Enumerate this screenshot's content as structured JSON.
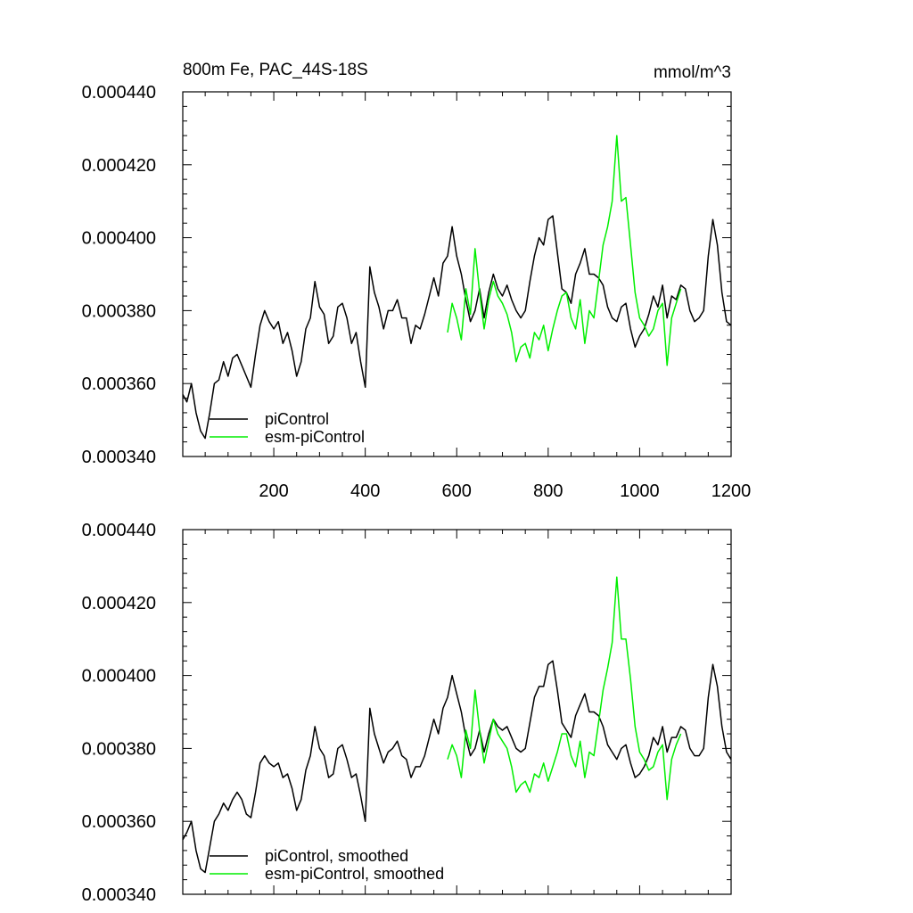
{
  "colors": {
    "piControl": "#000000",
    "esm": "#00ee00"
  },
  "chart_data": [
    {
      "type": "line",
      "title": "800m Fe, PAC_44S-18S",
      "units": "mmol/m^3",
      "xlim": [
        1,
        1200
      ],
      "ylim": [
        0.00034,
        0.00044
      ],
      "x_tick_values": [
        200,
        400,
        600,
        800,
        1000,
        1200
      ],
      "x_tick_labels": [
        "200",
        "400",
        "600",
        "800",
        "1000",
        "1200"
      ],
      "y_tick_values": [
        0.00034,
        0.00036,
        0.00038,
        0.0004,
        0.00042,
        0.00044
      ],
      "y_tick_labels": [
        "0.000340",
        "0.000360",
        "0.000380",
        "0.000400",
        "0.000420",
        "0.000440"
      ],
      "legend_position": "bottom-left",
      "series": [
        {
          "name": "piControl",
          "color": "#000000",
          "x": [
            1,
            10,
            20,
            30,
            40,
            50,
            60,
            70,
            80,
            90,
            100,
            110,
            120,
            130,
            140,
            150,
            160,
            170,
            180,
            190,
            200,
            210,
            220,
            230,
            240,
            250,
            260,
            270,
            280,
            290,
            300,
            310,
            320,
            330,
            340,
            350,
            360,
            370,
            380,
            390,
            400,
            410,
            420,
            430,
            440,
            450,
            460,
            470,
            480,
            490,
            500,
            510,
            520,
            530,
            540,
            550,
            560,
            570,
            580,
            590,
            600,
            610,
            620,
            630,
            640,
            650,
            660,
            670,
            680,
            690,
            700,
            710,
            720,
            730,
            740,
            750,
            760,
            770,
            780,
            790,
            800,
            810,
            820,
            830,
            840,
            850,
            860,
            870,
            880,
            890,
            900,
            910,
            920,
            930,
            940,
            950,
            960,
            970,
            980,
            990,
            1000,
            1010,
            1020,
            1030,
            1040,
            1050,
            1060,
            1070,
            1080,
            1090,
            1100,
            1110,
            1120,
            1130,
            1140,
            1150,
            1160,
            1170,
            1180,
            1190,
            1200
          ],
          "y": [
            0.000357,
            0.000355,
            0.00036,
            0.000352,
            0.000347,
            0.000345,
            0.000352,
            0.00036,
            0.000361,
            0.000366,
            0.000362,
            0.000367,
            0.000368,
            0.000365,
            0.000362,
            0.000359,
            0.000368,
            0.000376,
            0.00038,
            0.000377,
            0.000375,
            0.000377,
            0.000371,
            0.000374,
            0.000369,
            0.000362,
            0.000366,
            0.000375,
            0.000378,
            0.000388,
            0.000381,
            0.000379,
            0.000371,
            0.000373,
            0.000381,
            0.000382,
            0.000378,
            0.000371,
            0.000374,
            0.000366,
            0.000359,
            0.000392,
            0.000385,
            0.000381,
            0.000375,
            0.00038,
            0.00038,
            0.000383,
            0.000378,
            0.000378,
            0.000371,
            0.000376,
            0.000375,
            0.000379,
            0.000384,
            0.000389,
            0.000384,
            0.000393,
            0.000395,
            0.000403,
            0.000395,
            0.00039,
            0.000383,
            0.000377,
            0.00038,
            0.000386,
            0.000378,
            0.000385,
            0.00039,
            0.000386,
            0.000384,
            0.000387,
            0.000383,
            0.00038,
            0.000378,
            0.00038,
            0.000388,
            0.000395,
            0.0004,
            0.000398,
            0.000405,
            0.000406,
            0.000396,
            0.000386,
            0.000385,
            0.000382,
            0.00039,
            0.000393,
            0.000397,
            0.00039,
            0.00039,
            0.000389,
            0.000387,
            0.000381,
            0.000378,
            0.000377,
            0.000381,
            0.000382,
            0.000375,
            0.00037,
            0.000373,
            0.000375,
            0.000379,
            0.000384,
            0.000381,
            0.000387,
            0.000378,
            0.000384,
            0.000383,
            0.000387,
            0.000386,
            0.00038,
            0.000377,
            0.000378,
            0.00038,
            0.000395,
            0.000405,
            0.000398,
            0.000385,
            0.000377,
            0.000376
          ]
        },
        {
          "name": "esm-piControl",
          "color": "#00ee00",
          "x": [
            580,
            590,
            600,
            610,
            620,
            630,
            640,
            650,
            660,
            670,
            680,
            690,
            700,
            710,
            720,
            730,
            740,
            750,
            760,
            770,
            780,
            790,
            800,
            810,
            820,
            830,
            840,
            850,
            860,
            870,
            880,
            890,
            900,
            910,
            920,
            930,
            940,
            950,
            960,
            970,
            980,
            990,
            1000,
            1010,
            1020,
            1030,
            1040,
            1050,
            1060,
            1070,
            1080,
            1090
          ],
          "y": [
            0.000374,
            0.000382,
            0.000378,
            0.000372,
            0.000386,
            0.000379,
            0.000397,
            0.000385,
            0.000375,
            0.000383,
            0.000388,
            0.000384,
            0.000382,
            0.000379,
            0.000374,
            0.000366,
            0.00037,
            0.000371,
            0.000367,
            0.000374,
            0.000372,
            0.000376,
            0.000369,
            0.000375,
            0.00038,
            0.000384,
            0.000385,
            0.000378,
            0.000375,
            0.000383,
            0.000371,
            0.00038,
            0.000378,
            0.000388,
            0.000398,
            0.000403,
            0.00041,
            0.000428,
            0.00041,
            0.000411,
            0.000398,
            0.000385,
            0.000378,
            0.000376,
            0.000373,
            0.000375,
            0.00038,
            0.000382,
            0.000365,
            0.000378,
            0.000382,
            0.000386
          ]
        }
      ]
    },
    {
      "type": "line",
      "xlim": [
        1,
        1200
      ],
      "ylim": [
        0.00034,
        0.00044
      ],
      "x_tick_values": [
        200,
        400,
        600,
        800,
        1000,
        1200
      ],
      "x_tick_labels": [],
      "y_tick_values": [
        0.00034,
        0.00036,
        0.00038,
        0.0004,
        0.00042,
        0.00044
      ],
      "y_tick_labels": [
        "0.000340",
        "0.000360",
        "0.000380",
        "0.000400",
        "0.000420",
        "0.000440"
      ],
      "legend_position": "bottom-left",
      "series": [
        {
          "name": "piControl, smoothed",
          "color": "#000000",
          "x": [
            1,
            10,
            20,
            30,
            40,
            50,
            60,
            70,
            80,
            90,
            100,
            110,
            120,
            130,
            140,
            150,
            160,
            170,
            180,
            190,
            200,
            210,
            220,
            230,
            240,
            250,
            260,
            270,
            280,
            290,
            300,
            310,
            320,
            330,
            340,
            350,
            360,
            370,
            380,
            390,
            400,
            410,
            420,
            430,
            440,
            450,
            460,
            470,
            480,
            490,
            500,
            510,
            520,
            530,
            540,
            550,
            560,
            570,
            580,
            590,
            600,
            610,
            620,
            630,
            640,
            650,
            660,
            670,
            680,
            690,
            700,
            710,
            720,
            730,
            740,
            750,
            760,
            770,
            780,
            790,
            800,
            810,
            820,
            830,
            840,
            850,
            860,
            870,
            880,
            890,
            900,
            910,
            920,
            930,
            940,
            950,
            960,
            970,
            980,
            990,
            1000,
            1010,
            1020,
            1030,
            1040,
            1050,
            1060,
            1070,
            1080,
            1090,
            1100,
            1110,
            1120,
            1130,
            1140,
            1150,
            1160,
            1170,
            1180,
            1190,
            1200
          ],
          "y": [
            0.000355,
            0.000357,
            0.00036,
            0.000352,
            0.000347,
            0.000346,
            0.000353,
            0.00036,
            0.000362,
            0.000365,
            0.000363,
            0.000366,
            0.000368,
            0.000366,
            0.000362,
            0.000361,
            0.000368,
            0.000376,
            0.000378,
            0.000376,
            0.000375,
            0.000376,
            0.000372,
            0.000373,
            0.000369,
            0.000363,
            0.000366,
            0.000374,
            0.000378,
            0.000386,
            0.00038,
            0.000378,
            0.000372,
            0.000373,
            0.00038,
            0.000381,
            0.000377,
            0.000372,
            0.000373,
            0.000367,
            0.00036,
            0.000391,
            0.000384,
            0.00038,
            0.000376,
            0.000379,
            0.00038,
            0.000382,
            0.000378,
            0.000377,
            0.000372,
            0.000375,
            0.000375,
            0.000378,
            0.000383,
            0.000388,
            0.000384,
            0.000391,
            0.000394,
            0.0004,
            0.000395,
            0.00039,
            0.000383,
            0.000378,
            0.00038,
            0.000385,
            0.000379,
            0.000384,
            0.000388,
            0.000386,
            0.000385,
            0.000386,
            0.000383,
            0.00038,
            0.000379,
            0.00038,
            0.000387,
            0.000394,
            0.000397,
            0.000397,
            0.000403,
            0.000404,
            0.000396,
            0.000387,
            0.000385,
            0.000383,
            0.000389,
            0.000392,
            0.000395,
            0.00039,
            0.00039,
            0.000389,
            0.000386,
            0.000381,
            0.000379,
            0.000377,
            0.00038,
            0.000381,
            0.000376,
            0.000372,
            0.000373,
            0.000375,
            0.000378,
            0.000383,
            0.000381,
            0.000386,
            0.000379,
            0.000383,
            0.000383,
            0.000386,
            0.000385,
            0.00038,
            0.000378,
            0.000378,
            0.00038,
            0.000394,
            0.000403,
            0.000397,
            0.000386,
            0.000379,
            0.000377
          ]
        },
        {
          "name": "esm-piControl, smoothed",
          "color": "#00ee00",
          "x": [
            580,
            590,
            600,
            610,
            620,
            630,
            640,
            650,
            660,
            670,
            680,
            690,
            700,
            710,
            720,
            730,
            740,
            750,
            760,
            770,
            780,
            790,
            800,
            810,
            820,
            830,
            840,
            850,
            860,
            870,
            880,
            890,
            900,
            910,
            920,
            930,
            940,
            950,
            960,
            970,
            980,
            990,
            1000,
            1010,
            1020,
            1030,
            1040,
            1050,
            1060,
            1070,
            1080,
            1090
          ],
          "y": [
            0.000377,
            0.000381,
            0.000378,
            0.000372,
            0.000385,
            0.00038,
            0.000396,
            0.000385,
            0.000376,
            0.000382,
            0.000388,
            0.000384,
            0.000382,
            0.00038,
            0.000375,
            0.000368,
            0.00037,
            0.000371,
            0.000368,
            0.000373,
            0.000372,
            0.000376,
            0.000371,
            0.000375,
            0.000379,
            0.000384,
            0.000384,
            0.000378,
            0.000375,
            0.000382,
            0.000372,
            0.000379,
            0.000378,
            0.000387,
            0.000396,
            0.000402,
            0.000409,
            0.000427,
            0.00041,
            0.00041,
            0.000399,
            0.000386,
            0.000379,
            0.000377,
            0.000374,
            0.000375,
            0.000379,
            0.000381,
            0.000366,
            0.000377,
            0.000381,
            0.000384
          ]
        }
      ]
    }
  ]
}
